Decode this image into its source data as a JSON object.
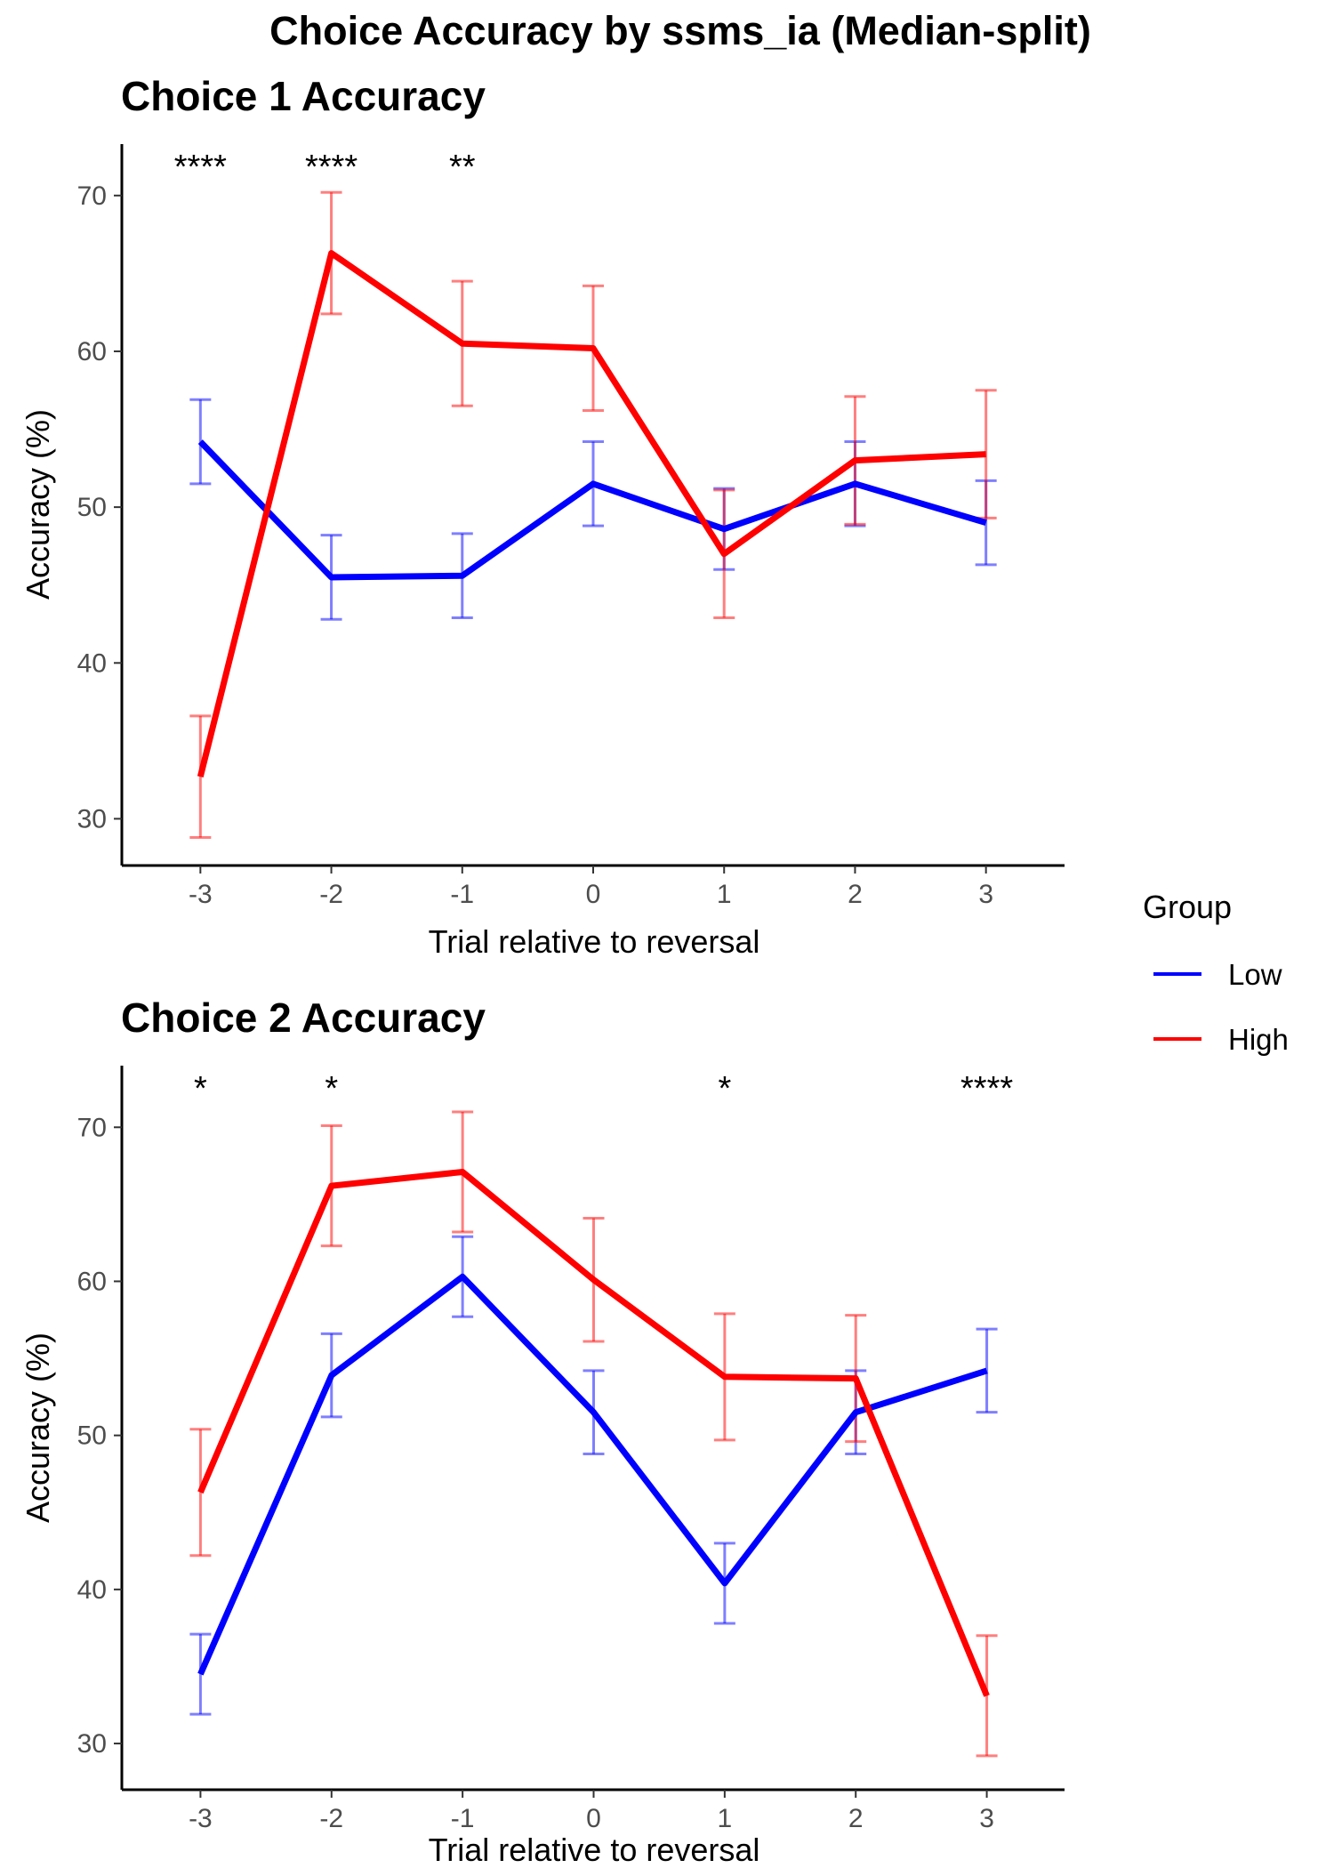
{
  "figure": {
    "title": "Choice Accuracy by ssms_ia (Median-split)"
  },
  "legend": {
    "title": "Group",
    "items": [
      {
        "label": "Low",
        "color": "#0000ff"
      },
      {
        "label": "High",
        "color": "#ff0000"
      }
    ],
    "placement": "right"
  },
  "chart_data": [
    {
      "type": "line",
      "title": "Choice 1 Accuracy",
      "xlabel": "Trial relative to reversal",
      "ylabel": "Accuracy (%)",
      "x": [
        -3,
        -2,
        -1,
        0,
        1,
        2,
        3
      ],
      "x_tick_labels": [
        "-3",
        "-2",
        "-1",
        "0",
        "1",
        "2",
        "3"
      ],
      "y_ticks": [
        30,
        40,
        50,
        60,
        70
      ],
      "ylim": [
        27,
        73.3
      ],
      "xlim": [
        -3.6,
        3.6
      ],
      "grid": false,
      "series": [
        {
          "name": "Low",
          "color": "#0000ff",
          "values": [
            54.2,
            45.5,
            45.6,
            51.5,
            48.6,
            51.5,
            49.0
          ],
          "error": [
            2.7,
            2.7,
            2.7,
            2.7,
            2.6,
            2.7,
            2.7
          ]
        },
        {
          "name": "High",
          "color": "#ff0000",
          "values": [
            32.7,
            66.3,
            60.5,
            60.2,
            47.0,
            53.0,
            53.4
          ],
          "error": [
            3.9,
            3.9,
            4.0,
            4.0,
            4.1,
            4.1,
            4.1
          ]
        }
      ],
      "significance": [
        {
          "x": -3,
          "label": "****"
        },
        {
          "x": -2,
          "label": "****"
        },
        {
          "x": -1,
          "label": "**"
        }
      ]
    },
    {
      "type": "line",
      "title": "Choice 2 Accuracy",
      "xlabel": "Trial relative to reversal",
      "ylabel": "Accuracy (%)",
      "x": [
        -3,
        -2,
        -1,
        0,
        1,
        2,
        3
      ],
      "x_tick_labels": [
        "-3",
        "-2",
        "-1",
        "0",
        "1",
        "2",
        "3"
      ],
      "y_ticks": [
        30,
        40,
        50,
        60,
        70
      ],
      "ylim": [
        27,
        74
      ],
      "xlim": [
        -3.6,
        3.6
      ],
      "grid": false,
      "series": [
        {
          "name": "Low",
          "color": "#0000ff",
          "values": [
            34.5,
            53.9,
            60.3,
            51.5,
            40.4,
            51.5,
            54.2
          ],
          "error": [
            2.6,
            2.7,
            2.6,
            2.7,
            2.6,
            2.7,
            2.7
          ]
        },
        {
          "name": "High",
          "color": "#ff0000",
          "values": [
            46.3,
            66.2,
            67.1,
            60.1,
            53.8,
            53.7,
            33.1
          ],
          "error": [
            4.1,
            3.9,
            3.9,
            4.0,
            4.1,
            4.1,
            3.9
          ]
        }
      ],
      "significance": [
        {
          "x": -3,
          "label": "*"
        },
        {
          "x": -2,
          "label": "*"
        },
        {
          "x": 1,
          "label": "*"
        },
        {
          "x": 3,
          "label": "****"
        }
      ]
    }
  ]
}
